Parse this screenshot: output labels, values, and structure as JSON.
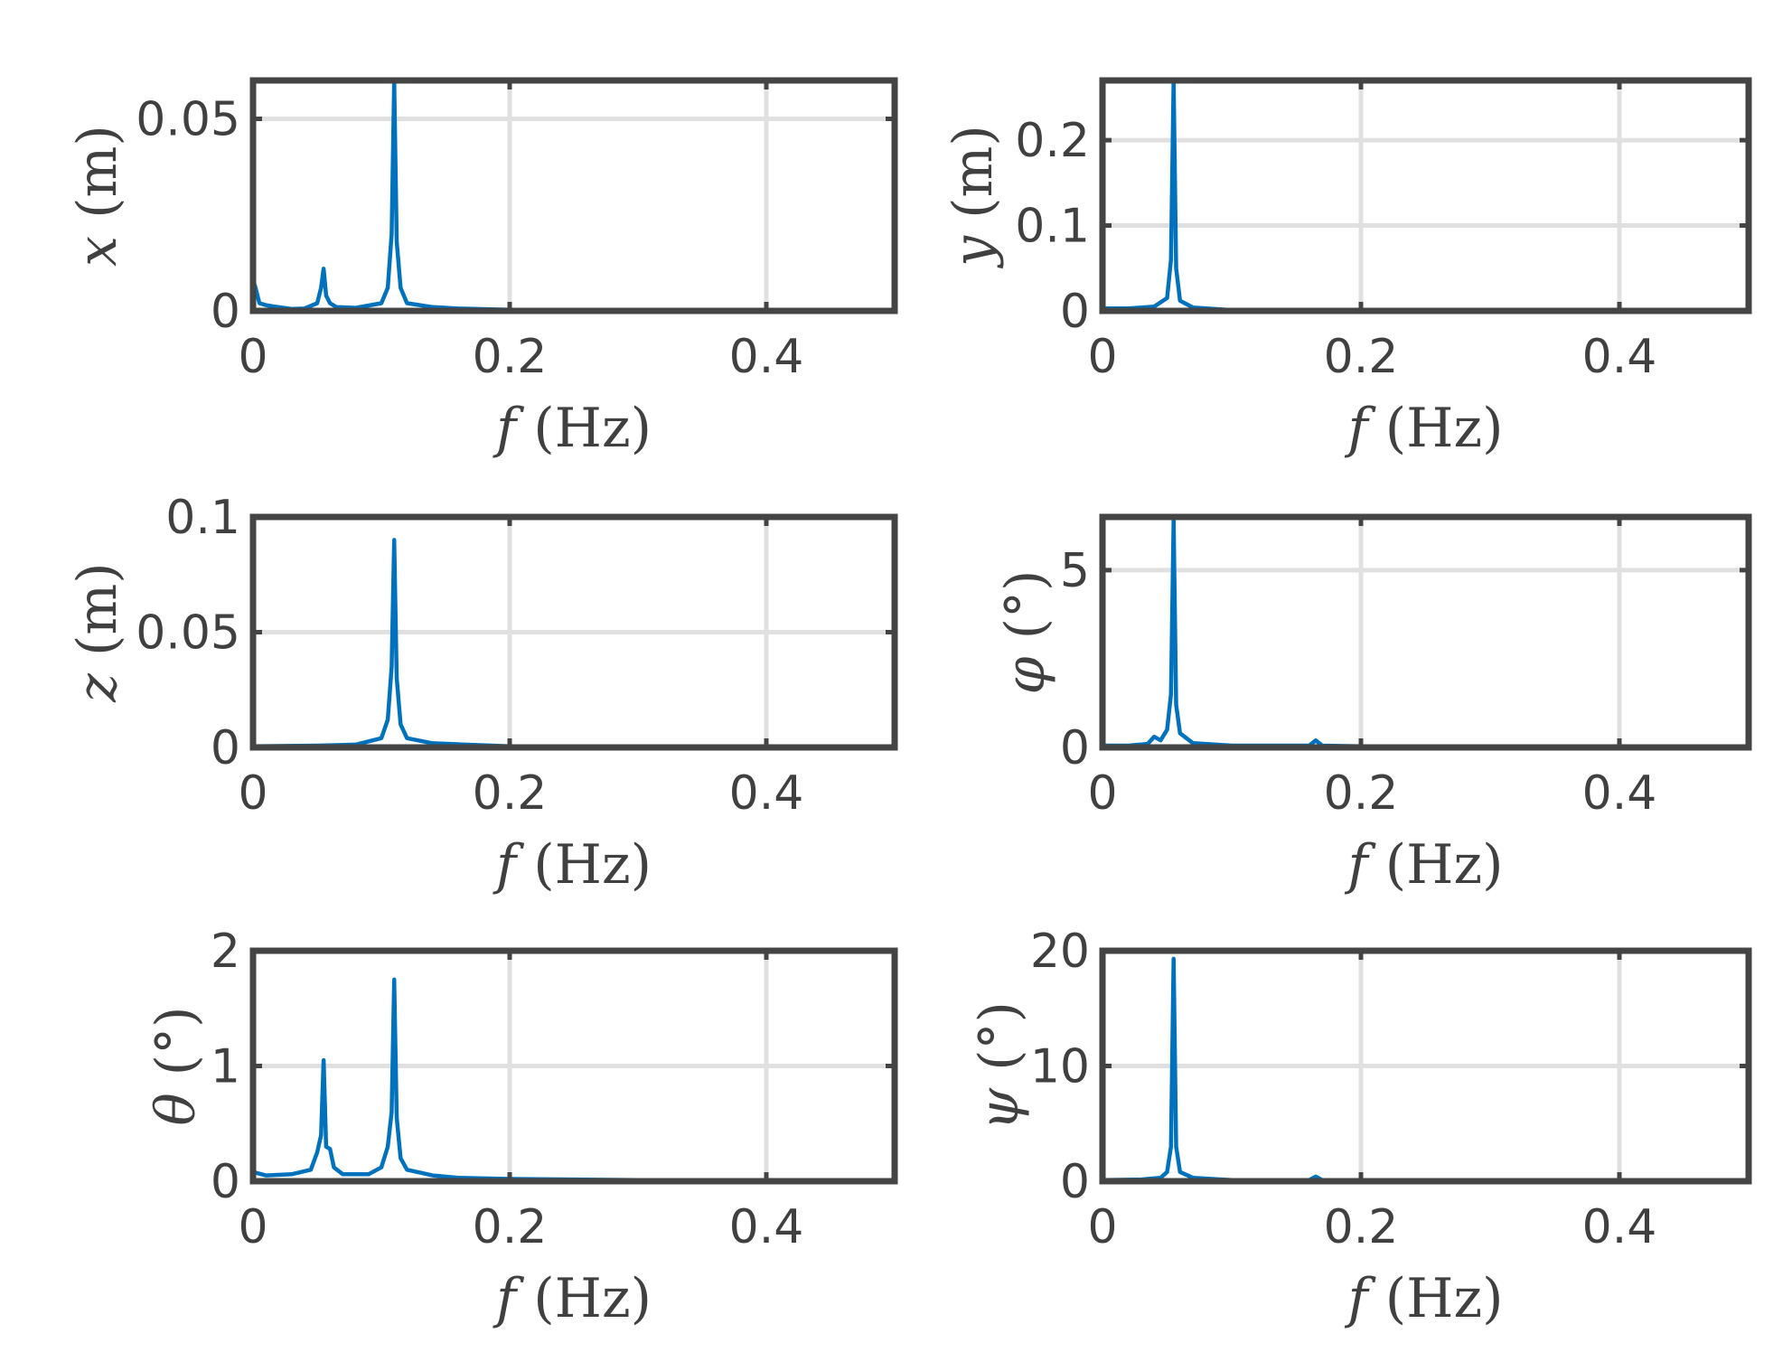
{
  "colors": {
    "series": "#0072BD",
    "axes": "#444444",
    "grid": "#e0e0e0",
    "text": "#404040"
  },
  "chart_data": [
    {
      "type": "line",
      "xlabel_var": "f",
      "xlabel_unit": "(Hz)",
      "ylabel_var": "x",
      "ylabel_unit": "(m)",
      "xlim": [
        0,
        0.5
      ],
      "ylim": [
        0,
        0.06
      ],
      "xticks": [
        0,
        0.2,
        0.4
      ],
      "xtick_labels": [
        "0",
        "0.2",
        "0.4"
      ],
      "yticks": [
        0,
        0.05
      ],
      "ytick_labels": [
        "0",
        "0.05"
      ],
      "grid": true,
      "series": [
        {
          "x": [
            0,
            0.002,
            0.005,
            0.01,
            0.015,
            0.02,
            0.03,
            0.04,
            0.05,
            0.053,
            0.055,
            0.057,
            0.06,
            0.065,
            0.08,
            0.1,
            0.105,
            0.108,
            0.11,
            0.112,
            0.115,
            0.12,
            0.14,
            0.16,
            0.2,
            0.3,
            0.4,
            0.5
          ],
          "y": [
            0.008,
            0.006,
            0.002,
            0.0015,
            0.0012,
            0.001,
            0.0005,
            0.0006,
            0.002,
            0.006,
            0.011,
            0.004,
            0.002,
            0.001,
            0.0008,
            0.002,
            0.006,
            0.02,
            0.06,
            0.018,
            0.006,
            0.002,
            0.001,
            0.0006,
            0.0003,
            0.0002,
            0.0001,
            0.0001
          ]
        }
      ]
    },
    {
      "type": "line",
      "xlabel_var": "f",
      "xlabel_unit": "(Hz)",
      "ylabel_var": "y",
      "ylabel_unit": "(m)",
      "xlim": [
        0,
        0.5
      ],
      "ylim": [
        0,
        0.27
      ],
      "xticks": [
        0,
        0.2,
        0.4
      ],
      "xtick_labels": [
        "0",
        "0.2",
        "0.4"
      ],
      "yticks": [
        0,
        0.1,
        0.2
      ],
      "ytick_labels": [
        "0",
        "0.1",
        "0.2"
      ],
      "grid": true,
      "series": [
        {
          "x": [
            0,
            0.02,
            0.04,
            0.05,
            0.053,
            0.055,
            0.057,
            0.06,
            0.07,
            0.1,
            0.2,
            0.3,
            0.4,
            0.5
          ],
          "y": [
            0.003,
            0.003,
            0.005,
            0.015,
            0.06,
            0.27,
            0.05,
            0.012,
            0.004,
            0.001,
            0.0005,
            0.0003,
            0.0002,
            0.0002
          ]
        }
      ]
    },
    {
      "type": "line",
      "xlabel_var": "f",
      "xlabel_unit": "(Hz)",
      "ylabel_var": "z",
      "ylabel_unit": "(m)",
      "xlim": [
        0,
        0.5
      ],
      "ylim": [
        0,
        0.1
      ],
      "xticks": [
        0,
        0.2,
        0.4
      ],
      "xtick_labels": [
        "0",
        "0.2",
        "0.4"
      ],
      "yticks": [
        0,
        0.05,
        0.1
      ],
      "ytick_labels": [
        "0",
        "0.05",
        "0.1"
      ],
      "grid": true,
      "series": [
        {
          "x": [
            0,
            0.05,
            0.08,
            0.1,
            0.105,
            0.108,
            0.11,
            0.112,
            0.115,
            0.12,
            0.14,
            0.165,
            0.2,
            0.3,
            0.4,
            0.5
          ],
          "y": [
            0.0005,
            0.0008,
            0.0012,
            0.004,
            0.012,
            0.035,
            0.09,
            0.03,
            0.01,
            0.004,
            0.0018,
            0.0012,
            0.0005,
            0.0004,
            0.0003,
            0.0003
          ]
        }
      ]
    },
    {
      "type": "line",
      "xlabel_var": "φ",
      "xlabel_unit": "(°)",
      "xlabel_x_var": "f",
      "xlabel_x_unit": "(Hz)",
      "ylabel_var": "φ",
      "ylabel_unit": "(°)",
      "xlim": [
        0,
        0.5
      ],
      "ylim": [
        0,
        6.5
      ],
      "xticks": [
        0,
        0.2,
        0.4
      ],
      "xtick_labels": [
        "0",
        "0.2",
        "0.4"
      ],
      "yticks": [
        0,
        5
      ],
      "ytick_labels": [
        "0",
        "5"
      ],
      "grid": true,
      "series": [
        {
          "x": [
            0,
            0.02,
            0.035,
            0.04,
            0.045,
            0.05,
            0.053,
            0.055,
            0.057,
            0.06,
            0.07,
            0.1,
            0.12,
            0.16,
            0.165,
            0.17,
            0.2,
            0.3,
            0.4,
            0.5
          ],
          "y": [
            0.05,
            0.05,
            0.1,
            0.3,
            0.2,
            0.5,
            1.5,
            6.4,
            1.2,
            0.4,
            0.12,
            0.05,
            0.05,
            0.05,
            0.2,
            0.05,
            0.03,
            0.02,
            0.02,
            0.02
          ]
        }
      ]
    },
    {
      "type": "line",
      "xlabel_var": "f",
      "xlabel_unit": "(Hz)",
      "ylabel_var": "θ",
      "ylabel_unit": "(°)",
      "xlim": [
        0,
        0.5
      ],
      "ylim": [
        0,
        2
      ],
      "xticks": [
        0,
        0.2,
        0.4
      ],
      "xtick_labels": [
        "0",
        "0.2",
        "0.4"
      ],
      "yticks": [
        0,
        1,
        2
      ],
      "ytick_labels": [
        "0",
        "1",
        "2"
      ],
      "grid": true,
      "series": [
        {
          "x": [
            0,
            0.01,
            0.03,
            0.045,
            0.05,
            0.053,
            0.055,
            0.057,
            0.06,
            0.063,
            0.07,
            0.09,
            0.1,
            0.105,
            0.108,
            0.11,
            0.112,
            0.115,
            0.12,
            0.14,
            0.16,
            0.2,
            0.3,
            0.4,
            0.5
          ],
          "y": [
            0.08,
            0.05,
            0.06,
            0.1,
            0.25,
            0.4,
            1.05,
            0.3,
            0.28,
            0.12,
            0.06,
            0.06,
            0.12,
            0.3,
            0.6,
            1.75,
            0.55,
            0.2,
            0.1,
            0.05,
            0.03,
            0.02,
            0.01,
            0.01,
            0.01
          ]
        }
      ]
    },
    {
      "type": "line",
      "xlabel_var": "f",
      "xlabel_unit": "(Hz)",
      "ylabel_var": "ψ",
      "ylabel_unit": "(°)",
      "xlim": [
        0,
        0.5
      ],
      "ylim": [
        0,
        20
      ],
      "xticks": [
        0,
        0.2,
        0.4
      ],
      "xtick_labels": [
        "0",
        "0.2",
        "0.4"
      ],
      "yticks": [
        0,
        10,
        20
      ],
      "ytick_labels": [
        "0",
        "10",
        "20"
      ],
      "grid": true,
      "series": [
        {
          "x": [
            0,
            0.03,
            0.045,
            0.05,
            0.053,
            0.055,
            0.057,
            0.06,
            0.07,
            0.1,
            0.16,
            0.165,
            0.17,
            0.2,
            0.3,
            0.4,
            0.5
          ],
          "y": [
            0.1,
            0.15,
            0.3,
            0.8,
            3,
            19.3,
            3,
            0.8,
            0.3,
            0.1,
            0.1,
            0.4,
            0.1,
            0.05,
            0.05,
            0.05,
            0.05
          ]
        }
      ]
    }
  ]
}
